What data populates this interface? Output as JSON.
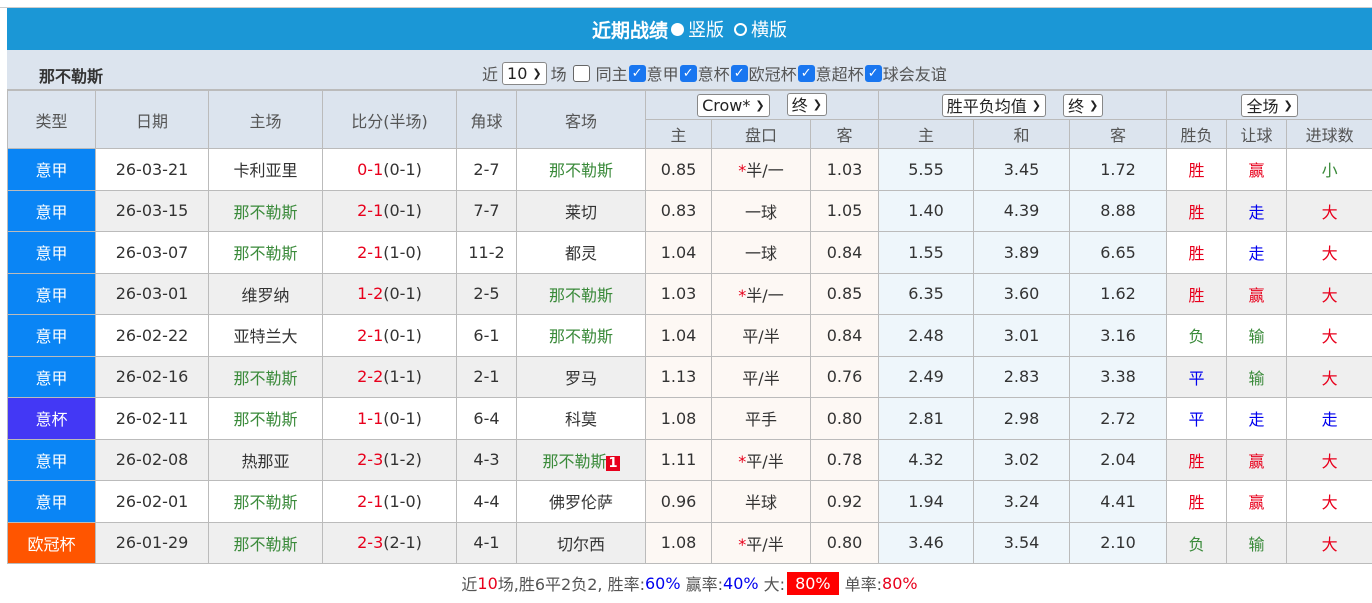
{
  "title": "近期战绩",
  "layout_options": [
    {
      "label": "竖版",
      "selected": true
    },
    {
      "label": "横版",
      "selected": false
    }
  ],
  "team_name": "那不勒斯",
  "filter": {
    "prefix": "近",
    "count": "10",
    "suffix": "场",
    "same_home_label": "同主",
    "same_home_checked": false,
    "competitions": [
      {
        "label": "意甲",
        "checked": true
      },
      {
        "label": "意杯",
        "checked": true
      },
      {
        "label": "欧冠杯",
        "checked": true
      },
      {
        "label": "意超杯",
        "checked": true
      },
      {
        "label": "球会友谊",
        "checked": true
      }
    ]
  },
  "headers": {
    "type": "类型",
    "date": "日期",
    "home": "主场",
    "score": "比分(半场)",
    "corner": "角球",
    "away": "客场",
    "company_select": "Crow*",
    "odds_time_select": "终",
    "avg_select": "胜平负均值",
    "avg_time_select": "终",
    "period_select": "全场",
    "sub": [
      "主",
      "盘口",
      "客",
      "主",
      "和",
      "客",
      "胜负",
      "让球",
      "进球数"
    ]
  },
  "colors": {
    "意甲": "#0a85f5",
    "意杯": "#4338f5",
    "欧冠杯": "#ff5500",
    "win": "#e8001c",
    "draw": "#0000ee",
    "lose": "#3a8a3a"
  },
  "rows": [
    {
      "type": "意甲",
      "date": "26-03-21",
      "home": "卡利亚里",
      "home_is_team": false,
      "ft": "0-1",
      "ht": "(0-1)",
      "corner": "2-7",
      "away": "那不勒斯",
      "away_is_team": true,
      "badge": "",
      "o_home": "0.85",
      "star": true,
      "line": "半/一",
      "o_away": "1.03",
      "e_home": "5.55",
      "e_draw": "3.45",
      "e_away": "1.72",
      "result": "胜",
      "handicap": "赢",
      "goals": "小"
    },
    {
      "type": "意甲",
      "date": "26-03-15",
      "home": "那不勒斯",
      "home_is_team": true,
      "ft": "2-1",
      "ht": "(0-1)",
      "corner": "7-7",
      "away": "莱切",
      "away_is_team": false,
      "badge": "",
      "o_home": "0.83",
      "star": false,
      "line": "一球",
      "o_away": "1.05",
      "e_home": "1.40",
      "e_draw": "4.39",
      "e_away": "8.88",
      "result": "胜",
      "handicap": "走",
      "goals": "大"
    },
    {
      "type": "意甲",
      "date": "26-03-07",
      "home": "那不勒斯",
      "home_is_team": true,
      "ft": "2-1",
      "ht": "(1-0)",
      "corner": "11-2",
      "away": "都灵",
      "away_is_team": false,
      "badge": "",
      "o_home": "1.04",
      "star": false,
      "line": "一球",
      "o_away": "0.84",
      "e_home": "1.55",
      "e_draw": "3.89",
      "e_away": "6.65",
      "result": "胜",
      "handicap": "走",
      "goals": "大"
    },
    {
      "type": "意甲",
      "date": "26-03-01",
      "home": "维罗纳",
      "home_is_team": false,
      "ft": "1-2",
      "ht": "(0-1)",
      "corner": "2-5",
      "away": "那不勒斯",
      "away_is_team": true,
      "badge": "",
      "o_home": "1.03",
      "star": true,
      "line": "半/一",
      "o_away": "0.85",
      "e_home": "6.35",
      "e_draw": "3.60",
      "e_away": "1.62",
      "result": "胜",
      "handicap": "赢",
      "goals": "大"
    },
    {
      "type": "意甲",
      "date": "26-02-22",
      "home": "亚特兰大",
      "home_is_team": false,
      "ft": "2-1",
      "ht": "(0-1)",
      "corner": "6-1",
      "away": "那不勒斯",
      "away_is_team": true,
      "badge": "",
      "o_home": "1.04",
      "star": false,
      "line": "平/半",
      "o_away": "0.84",
      "e_home": "2.48",
      "e_draw": "3.01",
      "e_away": "3.16",
      "result": "负",
      "handicap": "输",
      "goals": "大"
    },
    {
      "type": "意甲",
      "date": "26-02-16",
      "home": "那不勒斯",
      "home_is_team": true,
      "ft": "2-2",
      "ht": "(1-1)",
      "corner": "2-1",
      "away": "罗马",
      "away_is_team": false,
      "badge": "",
      "o_home": "1.13",
      "star": false,
      "line": "平/半",
      "o_away": "0.76",
      "e_home": "2.49",
      "e_draw": "2.83",
      "e_away": "3.38",
      "result": "平",
      "handicap": "输",
      "goals": "大"
    },
    {
      "type": "意杯",
      "date": "26-02-11",
      "home": "那不勒斯",
      "home_is_team": true,
      "ft": "1-1",
      "ht": "(0-1)",
      "corner": "6-4",
      "away": "科莫",
      "away_is_team": false,
      "badge": "",
      "o_home": "1.08",
      "star": false,
      "line": "平手",
      "o_away": "0.80",
      "e_home": "2.81",
      "e_draw": "2.98",
      "e_away": "2.72",
      "result": "平",
      "handicap": "走",
      "goals": "走"
    },
    {
      "type": "意甲",
      "date": "26-02-08",
      "home": "热那亚",
      "home_is_team": false,
      "ft": "2-3",
      "ht": "(1-2)",
      "corner": "4-3",
      "away": "那不勒斯",
      "away_is_team": true,
      "badge": "1",
      "o_home": "1.11",
      "star": true,
      "line": "平/半",
      "o_away": "0.78",
      "e_home": "4.32",
      "e_draw": "3.02",
      "e_away": "2.04",
      "result": "胜",
      "handicap": "赢",
      "goals": "大"
    },
    {
      "type": "意甲",
      "date": "26-02-01",
      "home": "那不勒斯",
      "home_is_team": true,
      "ft": "2-1",
      "ht": "(1-0)",
      "corner": "4-4",
      "away": "佛罗伦萨",
      "away_is_team": false,
      "badge": "",
      "o_home": "0.96",
      "star": false,
      "line": "半球",
      "o_away": "0.92",
      "e_home": "1.94",
      "e_draw": "3.24",
      "e_away": "4.41",
      "result": "胜",
      "handicap": "赢",
      "goals": "大"
    },
    {
      "type": "欧冠杯",
      "date": "26-01-29",
      "home": "那不勒斯",
      "home_is_team": true,
      "ft": "2-3",
      "ht": "(2-1)",
      "corner": "4-1",
      "away": "切尔西",
      "away_is_team": false,
      "badge": "",
      "o_home": "1.08",
      "star": true,
      "line": "平/半",
      "o_away": "0.80",
      "e_home": "3.46",
      "e_draw": "3.54",
      "e_away": "2.10",
      "result": "负",
      "handicap": "输",
      "goals": "大"
    }
  ],
  "summary": {
    "p1": "近",
    "n": "10",
    "p2": "场,胜6平2负2, 胜率:",
    "win_rate": "60%",
    "p3": " 赢率:",
    "handicap_rate": "40%",
    "p4": " 大:",
    "over_rate": "80%",
    "p5": "单率:",
    "odd_rate": "80%"
  }
}
